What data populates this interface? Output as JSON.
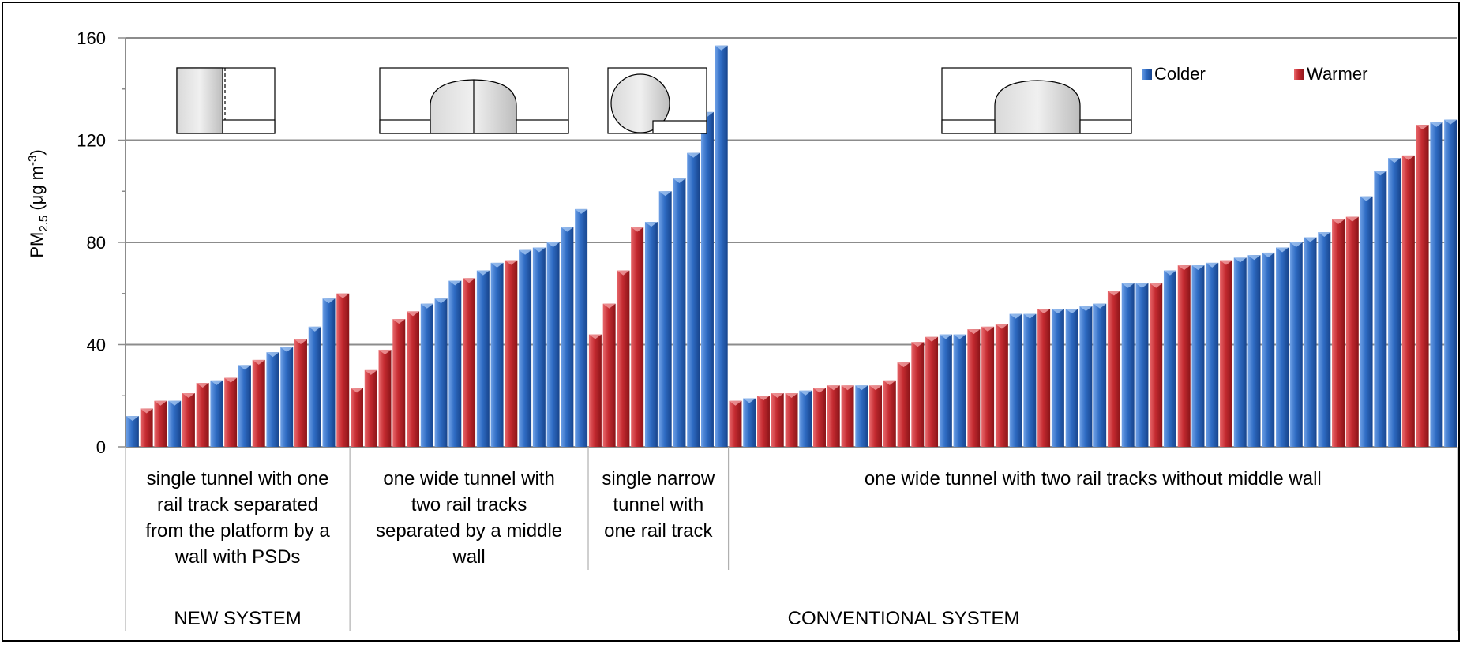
{
  "chart_data": {
    "type": "bar",
    "ylabel": "PM2.5 (μg m-3)",
    "ylabel_parts": {
      "main": "PM",
      "sub": "2.5",
      "unit_open": " (μg m",
      "sup": "-3",
      "unit_close": ")"
    },
    "ylim": [
      0,
      160
    ],
    "yticks": [
      "0",
      "40",
      "80",
      "120",
      "160"
    ],
    "grid": true,
    "legend_position": "top-right",
    "colors": {
      "Colder": "#2e6fc6",
      "Warmer": "#c7272d"
    },
    "legend": [
      {
        "name": "Colder",
        "color": "#2e6fc6"
      },
      {
        "name": "Warmer",
        "color": "#c7272d"
      }
    ],
    "groups": [
      {
        "category": "single tunnel with one rail track separated from the platform by a wall with PSDs",
        "label_lines": [
          "single tunnel with one",
          "rail track separated",
          "from the platform by a",
          "wall with PSDs"
        ],
        "system": "NEW SYSTEM",
        "icon": "tunnel-psd-wall-icon",
        "values": [
          12,
          15,
          18,
          18,
          21,
          25,
          26,
          27,
          32,
          34,
          37,
          39,
          42,
          47,
          58,
          60
        ],
        "series": [
          "Colder",
          "Warmer",
          "Warmer",
          "Colder",
          "Warmer",
          "Warmer",
          "Colder",
          "Warmer",
          "Colder",
          "Warmer",
          "Colder",
          "Colder",
          "Warmer",
          "Colder",
          "Colder",
          "Warmer"
        ]
      },
      {
        "category": "one wide tunnel with two rail tracks separated by a middle wall",
        "label_lines": [
          "one wide tunnel with",
          "two rail tracks",
          "separated by a middle",
          "wall"
        ],
        "system": "CONVENTIONAL SYSTEM",
        "icon": "wide-tunnel-middle-wall-icon",
        "values": [
          23,
          30,
          38,
          50,
          53,
          56,
          58,
          65,
          66,
          69,
          72,
          73,
          77,
          78,
          80,
          86,
          93
        ],
        "series": [
          "Warmer",
          "Warmer",
          "Warmer",
          "Warmer",
          "Warmer",
          "Colder",
          "Colder",
          "Colder",
          "Warmer",
          "Colder",
          "Colder",
          "Warmer",
          "Colder",
          "Colder",
          "Colder",
          "Colder",
          "Colder"
        ]
      },
      {
        "category": "single narrow tunnel with one rail track",
        "label_lines": [
          "single narrow",
          "tunnel with",
          "one rail track"
        ],
        "system": "CONVENTIONAL SYSTEM",
        "icon": "narrow-tunnel-icon",
        "values": [
          44,
          56,
          69,
          86,
          88,
          100,
          105,
          115,
          131,
          157
        ],
        "series": [
          "Warmer",
          "Warmer",
          "Warmer",
          "Warmer",
          "Colder",
          "Colder",
          "Colder",
          "Colder",
          "Colder",
          "Colder"
        ]
      },
      {
        "category": "one wide tunnel with two rail tracks without middle wall",
        "label_lines": [
          "one wide tunnel with two rail tracks without middle wall"
        ],
        "system": "CONVENTIONAL SYSTEM",
        "icon": "wide-tunnel-no-wall-icon",
        "values": [
          18,
          19,
          20,
          21,
          21,
          22,
          23,
          24,
          24,
          24,
          24,
          26,
          33,
          41,
          43,
          44,
          44,
          46,
          47,
          48,
          52,
          52,
          54,
          54,
          54,
          55,
          56,
          61,
          64,
          64,
          64,
          69,
          71,
          71,
          72,
          73,
          74,
          75,
          76,
          78,
          80,
          82,
          84,
          89,
          90,
          98,
          108,
          113,
          114,
          126,
          127,
          128
        ],
        "series": [
          "Warmer",
          "Colder",
          "Warmer",
          "Warmer",
          "Warmer",
          "Colder",
          "Warmer",
          "Warmer",
          "Warmer",
          "Colder",
          "Warmer",
          "Warmer",
          "Warmer",
          "Warmer",
          "Warmer",
          "Colder",
          "Colder",
          "Warmer",
          "Warmer",
          "Warmer",
          "Colder",
          "Colder",
          "Warmer",
          "Colder",
          "Colder",
          "Colder",
          "Colder",
          "Warmer",
          "Colder",
          "Colder",
          "Warmer",
          "Colder",
          "Warmer",
          "Colder",
          "Colder",
          "Warmer",
          "Colder",
          "Colder",
          "Colder",
          "Colder",
          "Colder",
          "Colder",
          "Colder",
          "Warmer",
          "Warmer",
          "Colder",
          "Colder",
          "Colder",
          "Warmer",
          "Warmer",
          "Colder",
          "Colder"
        ]
      }
    ],
    "systems": [
      "NEW SYSTEM",
      "CONVENTIONAL SYSTEM"
    ]
  }
}
